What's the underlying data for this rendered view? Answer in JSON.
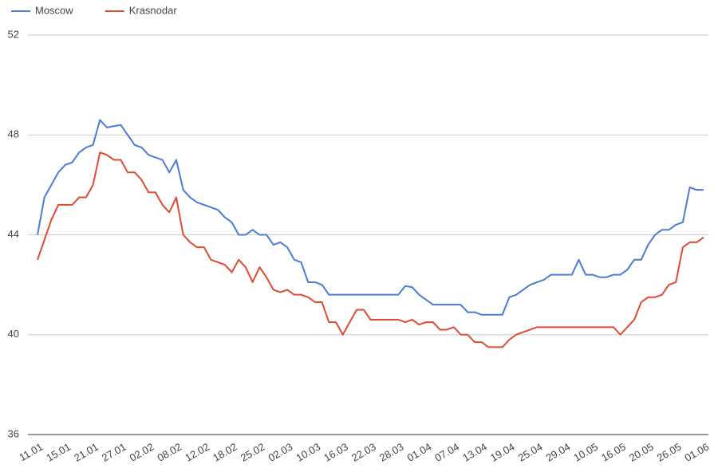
{
  "chart_data": {
    "type": "line",
    "categories": [
      "11.01",
      null,
      null,
      null,
      "15.01",
      null,
      null,
      null,
      "21.01",
      null,
      null,
      null,
      "27.01",
      null,
      null,
      null,
      "02.02",
      null,
      null,
      null,
      "08.02",
      null,
      null,
      null,
      "12.02",
      null,
      null,
      null,
      "18.02",
      null,
      null,
      null,
      "25.02",
      null,
      null,
      null,
      "02.03",
      null,
      null,
      null,
      "10.03",
      null,
      null,
      null,
      "16.03",
      null,
      null,
      null,
      "22.03",
      null,
      null,
      null,
      "28.03",
      null,
      null,
      null,
      "01.04",
      null,
      null,
      null,
      "07.04",
      null,
      null,
      null,
      "13.04",
      null,
      null,
      null,
      "19.04",
      null,
      null,
      null,
      "25.04",
      null,
      null,
      null,
      "29.04",
      null,
      null,
      null,
      "10.05",
      null,
      null,
      null,
      "16.05",
      null,
      null,
      null,
      "20.05",
      null,
      null,
      null,
      "26.05",
      null,
      null,
      null,
      "01.06"
    ],
    "series": [
      {
        "name": "Moscow",
        "color": "#4a7bd8",
        "values": [
          44.0,
          45.5,
          46.0,
          46.5,
          46.8,
          46.9,
          47.3,
          47.5,
          47.6,
          48.6,
          48.3,
          48.35,
          48.4,
          48.0,
          47.6,
          47.5,
          47.2,
          47.1,
          47.0,
          46.5,
          47.0,
          45.8,
          45.5,
          45.3,
          45.2,
          45.1,
          45.0,
          44.7,
          44.5,
          44.0,
          44.0,
          44.2,
          44.0,
          44.0,
          43.6,
          43.7,
          43.5,
          43.0,
          42.9,
          42.1,
          42.1,
          42.0,
          41.6,
          41.6,
          41.6,
          41.6,
          41.6,
          41.6,
          41.6,
          41.6,
          41.6,
          41.6,
          41.6,
          41.95,
          41.9,
          41.6,
          41.4,
          41.2,
          41.2,
          41.2,
          41.2,
          41.2,
          40.9,
          40.9,
          40.8,
          40.8,
          40.8,
          40.8,
          41.5,
          41.6,
          41.8,
          42.0,
          42.1,
          42.2,
          42.4,
          42.4,
          42.4,
          42.4,
          43.0,
          42.4,
          42.4,
          42.3,
          42.3,
          42.4,
          42.4,
          42.6,
          43.0,
          43.0,
          43.6,
          44.0,
          44.2,
          44.2,
          44.4,
          44.5,
          45.9,
          45.8,
          45.8
        ]
      },
      {
        "name": "Krasnodar",
        "color": "#e04a2f",
        "values": [
          43.0,
          43.8,
          44.6,
          45.2,
          45.2,
          45.2,
          45.5,
          45.5,
          46.0,
          47.3,
          47.2,
          47.0,
          47.0,
          46.5,
          46.5,
          46.2,
          45.7,
          45.7,
          45.2,
          44.9,
          45.5,
          44.0,
          43.7,
          43.5,
          43.5,
          43.0,
          42.9,
          42.8,
          42.5,
          43.0,
          42.7,
          42.1,
          42.7,
          42.3,
          41.8,
          41.7,
          41.8,
          41.6,
          41.6,
          41.5,
          41.3,
          41.3,
          40.5,
          40.5,
          40.0,
          40.5,
          41.0,
          41.0,
          40.6,
          40.6,
          40.6,
          40.6,
          40.6,
          40.5,
          40.6,
          40.4,
          40.5,
          40.5,
          40.2,
          40.2,
          40.3,
          40.0,
          40.0,
          39.7,
          39.7,
          39.5,
          39.5,
          39.5,
          39.8,
          40.0,
          40.1,
          40.2,
          40.3,
          40.3,
          40.3,
          40.3,
          40.3,
          40.3,
          40.3,
          40.3,
          40.3,
          40.3,
          40.3,
          40.3,
          40.0,
          40.3,
          40.6,
          41.3,
          41.5,
          41.5,
          41.6,
          42.0,
          42.1,
          43.5,
          43.7,
          43.7,
          43.9
        ]
      }
    ],
    "ylim": [
      36,
      52
    ],
    "yticks": [
      36,
      40,
      44,
      48,
      52
    ],
    "grid": true,
    "legend": "top-left"
  }
}
